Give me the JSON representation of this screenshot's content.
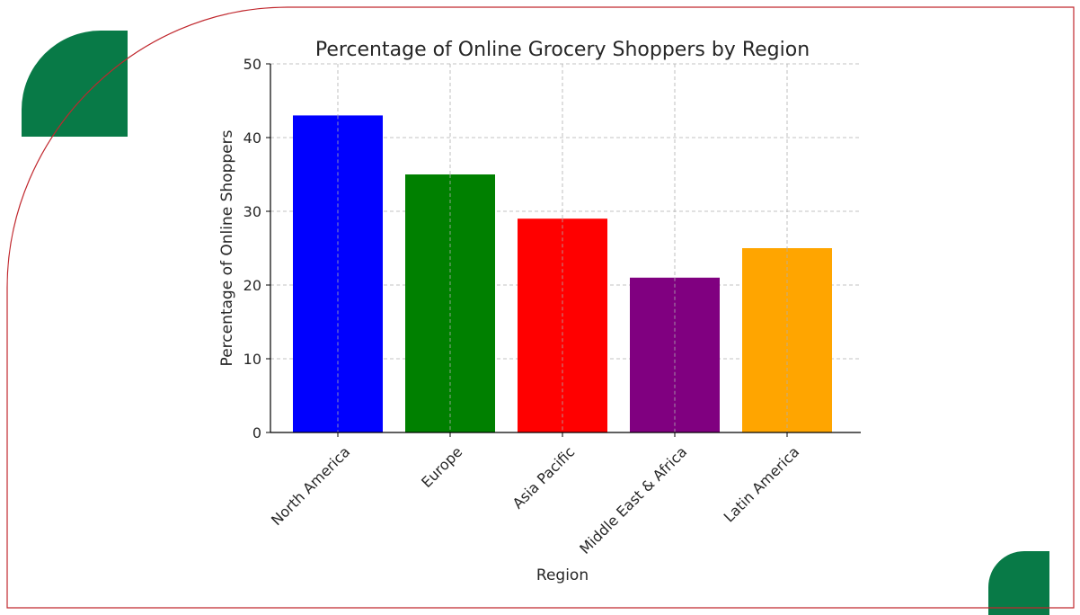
{
  "theme": {
    "frame_color": "#c0272d",
    "accent_color": "#087a47",
    "grid_color": "#b0b0b0",
    "axis_color": "#000000",
    "text_color": "#262626"
  },
  "chart_data": {
    "type": "bar",
    "title": "Percentage of Online Grocery Shoppers by Region",
    "xlabel": "Region",
    "ylabel": "Percentage of Online Shoppers",
    "categories": [
      "North America",
      "Europe",
      "Asia Pacific",
      "Middle East & Africa",
      "Latin America"
    ],
    "values": [
      43,
      35,
      29,
      21,
      25
    ],
    "colors": [
      "#0000ff",
      "#008000",
      "#ff0000",
      "#800080",
      "#ffa500"
    ],
    "ylim": [
      0,
      50
    ],
    "yticks": [
      0,
      10,
      20,
      30,
      40,
      50
    ],
    "grid": true,
    "legend": "none",
    "x_tick_rotation": 45
  }
}
